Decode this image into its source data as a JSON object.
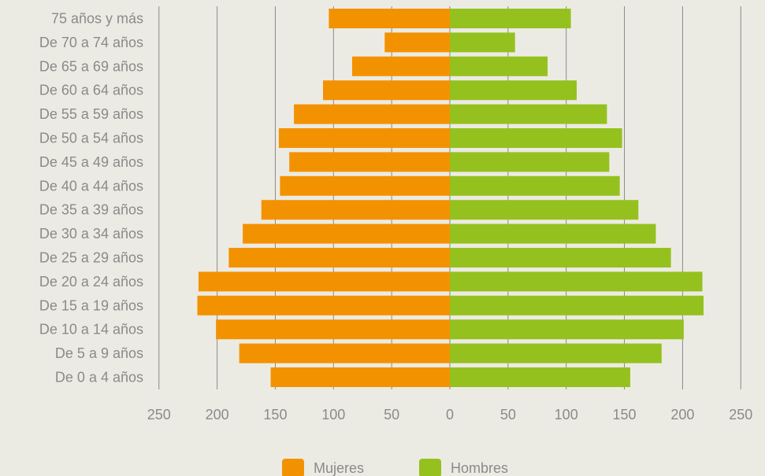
{
  "chart_data": {
    "type": "bar",
    "orientation": "horizontal",
    "subtype": "population-pyramid",
    "categories": [
      "75 años y más",
      "De 70 a 74 años",
      "De 65 a 69 años",
      "De 60 a 64 años",
      "De 55 a 59 años",
      "De 50 a 54 años",
      "De 45 a 49 años",
      "De 40 a 44 años",
      "De 35 a 39 años",
      "De 30 a 34 años",
      "De 25 a 29 años",
      "De 20 a 24 años",
      "De 15 a 19 años",
      "De 10 a 14 años",
      "De 5 a 9 años",
      "De 0 a 4 años"
    ],
    "series": [
      {
        "name": "Mujeres",
        "color": "#f39200",
        "side": "left",
        "values": [
          104,
          56,
          84,
          109,
          134,
          147,
          138,
          146,
          162,
          178,
          190,
          216,
          217,
          201,
          181,
          154
        ]
      },
      {
        "name": "Hombres",
        "color": "#95c11f",
        "side": "right",
        "values": [
          104,
          56,
          84,
          109,
          135,
          148,
          137,
          146,
          162,
          177,
          190,
          217,
          218,
          201,
          182,
          155
        ]
      }
    ],
    "xlim": [
      -250,
      250
    ],
    "xticks": [
      -250,
      -200,
      -150,
      -100,
      -50,
      0,
      50,
      100,
      150,
      200,
      250
    ],
    "xtick_labels": [
      "250",
      "200",
      "150",
      "100",
      "50",
      "0",
      "50",
      "100",
      "150",
      "200",
      "250"
    ],
    "grid": "vertical",
    "gridline_color": "#8a8a8a",
    "background": "#ecebe3",
    "legend_position": "bottom-center",
    "title": "",
    "xlabel": "",
    "ylabel": ""
  }
}
